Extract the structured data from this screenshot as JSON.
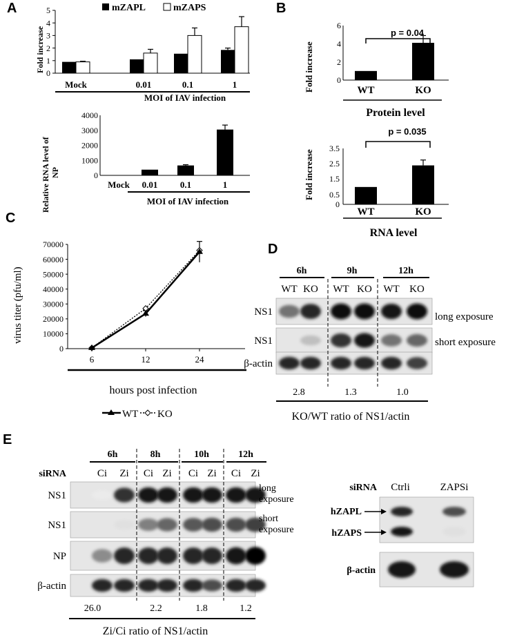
{
  "panels": {
    "A": {
      "label": "A",
      "top_chart": {
        "legend": [
          "mZAPL",
          "mZAPS"
        ],
        "ylabel": "Fold increase",
        "yticks": [
          "0",
          "1",
          "2",
          "3",
          "4",
          "5"
        ],
        "groups": [
          "Mock",
          "0.01",
          "0.1",
          "1"
        ],
        "xlabel": "MOI of IAV infection"
      },
      "bottom_chart": {
        "ylabel_line1": "Relative RNA level of",
        "ylabel_line2": "NP",
        "yticks": [
          "0",
          "1000",
          "2000",
          "3000",
          "4000"
        ],
        "groups": [
          "Mock",
          "0.01",
          "0.1",
          "1"
        ],
        "xlabel": "MOI of IAV infection"
      }
    },
    "B": {
      "label": "B",
      "protein": {
        "ylabel": "Fold increase",
        "yticks": [
          "0",
          "2",
          "4",
          "6"
        ],
        "categories": [
          "WT",
          "KO"
        ],
        "pvalue": "p = 0.04",
        "title": "Protein level"
      },
      "rna": {
        "ylabel": "Fold increase",
        "yticks": [
          "0",
          "0.5",
          "1.5",
          "2.5",
          "3.5"
        ],
        "categories": [
          "WT",
          "KO"
        ],
        "pvalue": "p = 0.035",
        "title": "RNA level"
      }
    },
    "C": {
      "label": "C",
      "ylabel": "virus titer (pfu/ml)",
      "yticks": [
        "0",
        "10000",
        "20000",
        "30000",
        "40000",
        "50000",
        "60000",
        "70000"
      ],
      "xticks": [
        "6",
        "12",
        "24"
      ],
      "xlabel": "hours post infection",
      "legend": [
        "WT",
        "KO"
      ]
    },
    "D": {
      "label": "D",
      "timepoints": [
        "6h",
        "9h",
        "12h"
      ],
      "lanes": [
        "WT",
        "KO",
        "WT",
        "KO",
        "WT",
        "KO"
      ],
      "rows": [
        "NS1",
        "NS1",
        "β-actin"
      ],
      "row_notes": [
        "long exposure",
        "short exposure"
      ],
      "ratios": [
        "2.8",
        "1.3",
        "1.0"
      ],
      "ratio_label": "KO/WT ratio of NS1/actin"
    },
    "E": {
      "label": "E",
      "sirna_label": "siRNA",
      "timepoints": [
        "6h",
        "8h",
        "10h",
        "12h"
      ],
      "lanes": [
        "Ci",
        "Zi",
        "Ci",
        "Zi",
        "Ci",
        "Zi",
        "Ci",
        "Zi"
      ],
      "rows": [
        "NS1",
        "NS1",
        "NP",
        "β-actin"
      ],
      "row_notes": [
        "long",
        "exposure",
        "short",
        "exposure"
      ],
      "ratios": [
        "26.0",
        "2.2",
        "1.8",
        "1.2"
      ],
      "ratio_label": "Zi/Ci ratio of NS1/actin",
      "right_blot": {
        "sirna_label": "siRNA",
        "lanes": [
          "Ctrli",
          "ZAPSi"
        ],
        "bands": [
          "hZAPL",
          "hZAPS"
        ],
        "actin": "β-actin"
      }
    }
  },
  "chart_data": [
    {
      "type": "bar",
      "ylabel": "Fold increase",
      "xlabel": "MOI of IAV infection",
      "categories": [
        "Mock",
        "0.01",
        "0.1",
        "1"
      ],
      "ylim": [
        0,
        5
      ],
      "series": [
        {
          "name": "mZAPL",
          "values": [
            0.9,
            1.1,
            1.55,
            1.85
          ],
          "errors": [
            0,
            0,
            0,
            0.15
          ]
        },
        {
          "name": "mZAPS",
          "values": [
            0.9,
            1.6,
            3.0,
            3.7
          ],
          "errors": [
            0.05,
            0.3,
            0.6,
            0.8
          ]
        }
      ]
    },
    {
      "type": "bar",
      "ylabel": "Relative RNA level of NP",
      "xlabel": "MOI of IAV infection",
      "categories": [
        "Mock",
        "0.01",
        "0.1",
        "1"
      ],
      "ylim": [
        0,
        4000
      ],
      "values": [
        0,
        380,
        660,
        3050
      ],
      "errors": [
        0,
        0,
        50,
        300
      ]
    },
    {
      "type": "bar",
      "title": "Protein level",
      "ylabel": "Fold increase",
      "categories": [
        "WT",
        "KO"
      ],
      "ylim": [
        0,
        6
      ],
      "values": [
        1.0,
        4.1
      ],
      "errors": [
        0,
        0.8
      ],
      "annotation": "p = 0.04"
    },
    {
      "type": "bar",
      "title": "RNA level",
      "ylabel": "Fold increase",
      "categories": [
        "WT",
        "KO"
      ],
      "yrange_note": "axis 0 then 0.5–3.5",
      "values": [
        1.0,
        2.4
      ],
      "errors": [
        0,
        0.35
      ],
      "annotation": "p = 0.035"
    },
    {
      "type": "line",
      "ylabel": "virus titer (pfu/ml)",
      "xlabel": "hours post infection",
      "x": [
        "6",
        "12",
        "24"
      ],
      "ylim": [
        0,
        70000
      ],
      "series": [
        {
          "name": "WT",
          "values": [
            500,
            23500,
            65000
          ],
          "errors": [
            0,
            2000,
            7000
          ]
        },
        {
          "name": "KO",
          "values": [
            500,
            27000,
            66000
          ],
          "errors": [
            0,
            2000,
            7000
          ]
        }
      ]
    }
  ]
}
